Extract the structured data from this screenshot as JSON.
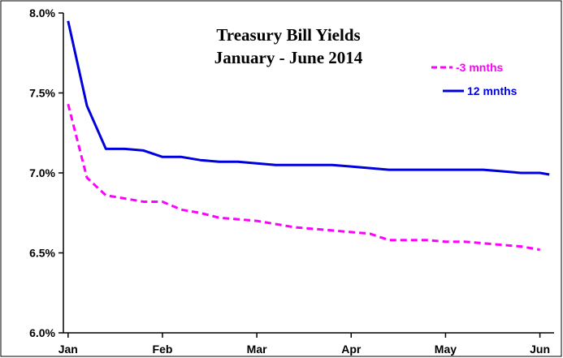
{
  "chart_data": {
    "type": "line",
    "title": "Treasury Bill  Yields",
    "subtitle": "January - June 2014",
    "xlabel": "",
    "ylabel": "",
    "ylim": [
      6.0,
      8.0
    ],
    "y_ticks": [
      "6.0%",
      "6.5%",
      "7.0%",
      "7.5%",
      "8.0%"
    ],
    "y_tick_values": [
      6.0,
      6.5,
      7.0,
      7.5,
      8.0
    ],
    "x_ticks": [
      "Jan",
      "Feb",
      "Mar",
      "Apr",
      "May",
      "Jun"
    ],
    "x_tick_values": [
      0,
      1,
      2,
      3,
      4,
      5
    ],
    "xlim": [
      -0.05,
      5.15
    ],
    "grid": false,
    "legend_position": "top-right",
    "series": [
      {
        "name": "-3 mnths",
        "color": "#ff00ff",
        "style": "dashed",
        "x": [
          0,
          0.2,
          0.4,
          0.6,
          0.8,
          1.0,
          1.2,
          1.4,
          1.6,
          1.8,
          2.0,
          2.2,
          2.4,
          2.6,
          2.8,
          3.0,
          3.2,
          3.4,
          3.6,
          3.8,
          4.0,
          4.2,
          4.4,
          4.6,
          4.8,
          5.0
        ],
        "values": [
          7.43,
          6.97,
          6.86,
          6.84,
          6.82,
          6.82,
          6.77,
          6.75,
          6.72,
          6.71,
          6.7,
          6.68,
          6.66,
          6.65,
          6.64,
          6.63,
          6.62,
          6.58,
          6.58,
          6.58,
          6.57,
          6.57,
          6.56,
          6.55,
          6.54,
          6.52
        ]
      },
      {
        "name": "12 mnths",
        "color": "#0000dd",
        "style": "solid",
        "x": [
          0,
          0.2,
          0.4,
          0.6,
          0.8,
          1.0,
          1.2,
          1.4,
          1.6,
          1.8,
          2.0,
          2.2,
          2.4,
          2.6,
          2.8,
          3.0,
          3.2,
          3.4,
          3.6,
          3.8,
          4.0,
          4.2,
          4.4,
          4.6,
          4.8,
          5.0,
          5.1
        ],
        "values": [
          7.95,
          7.42,
          7.15,
          7.15,
          7.14,
          7.1,
          7.1,
          7.08,
          7.07,
          7.07,
          7.06,
          7.05,
          7.05,
          7.05,
          7.05,
          7.04,
          7.03,
          7.02,
          7.02,
          7.02,
          7.02,
          7.02,
          7.02,
          7.01,
          7.0,
          7.0,
          6.99
        ]
      }
    ]
  }
}
